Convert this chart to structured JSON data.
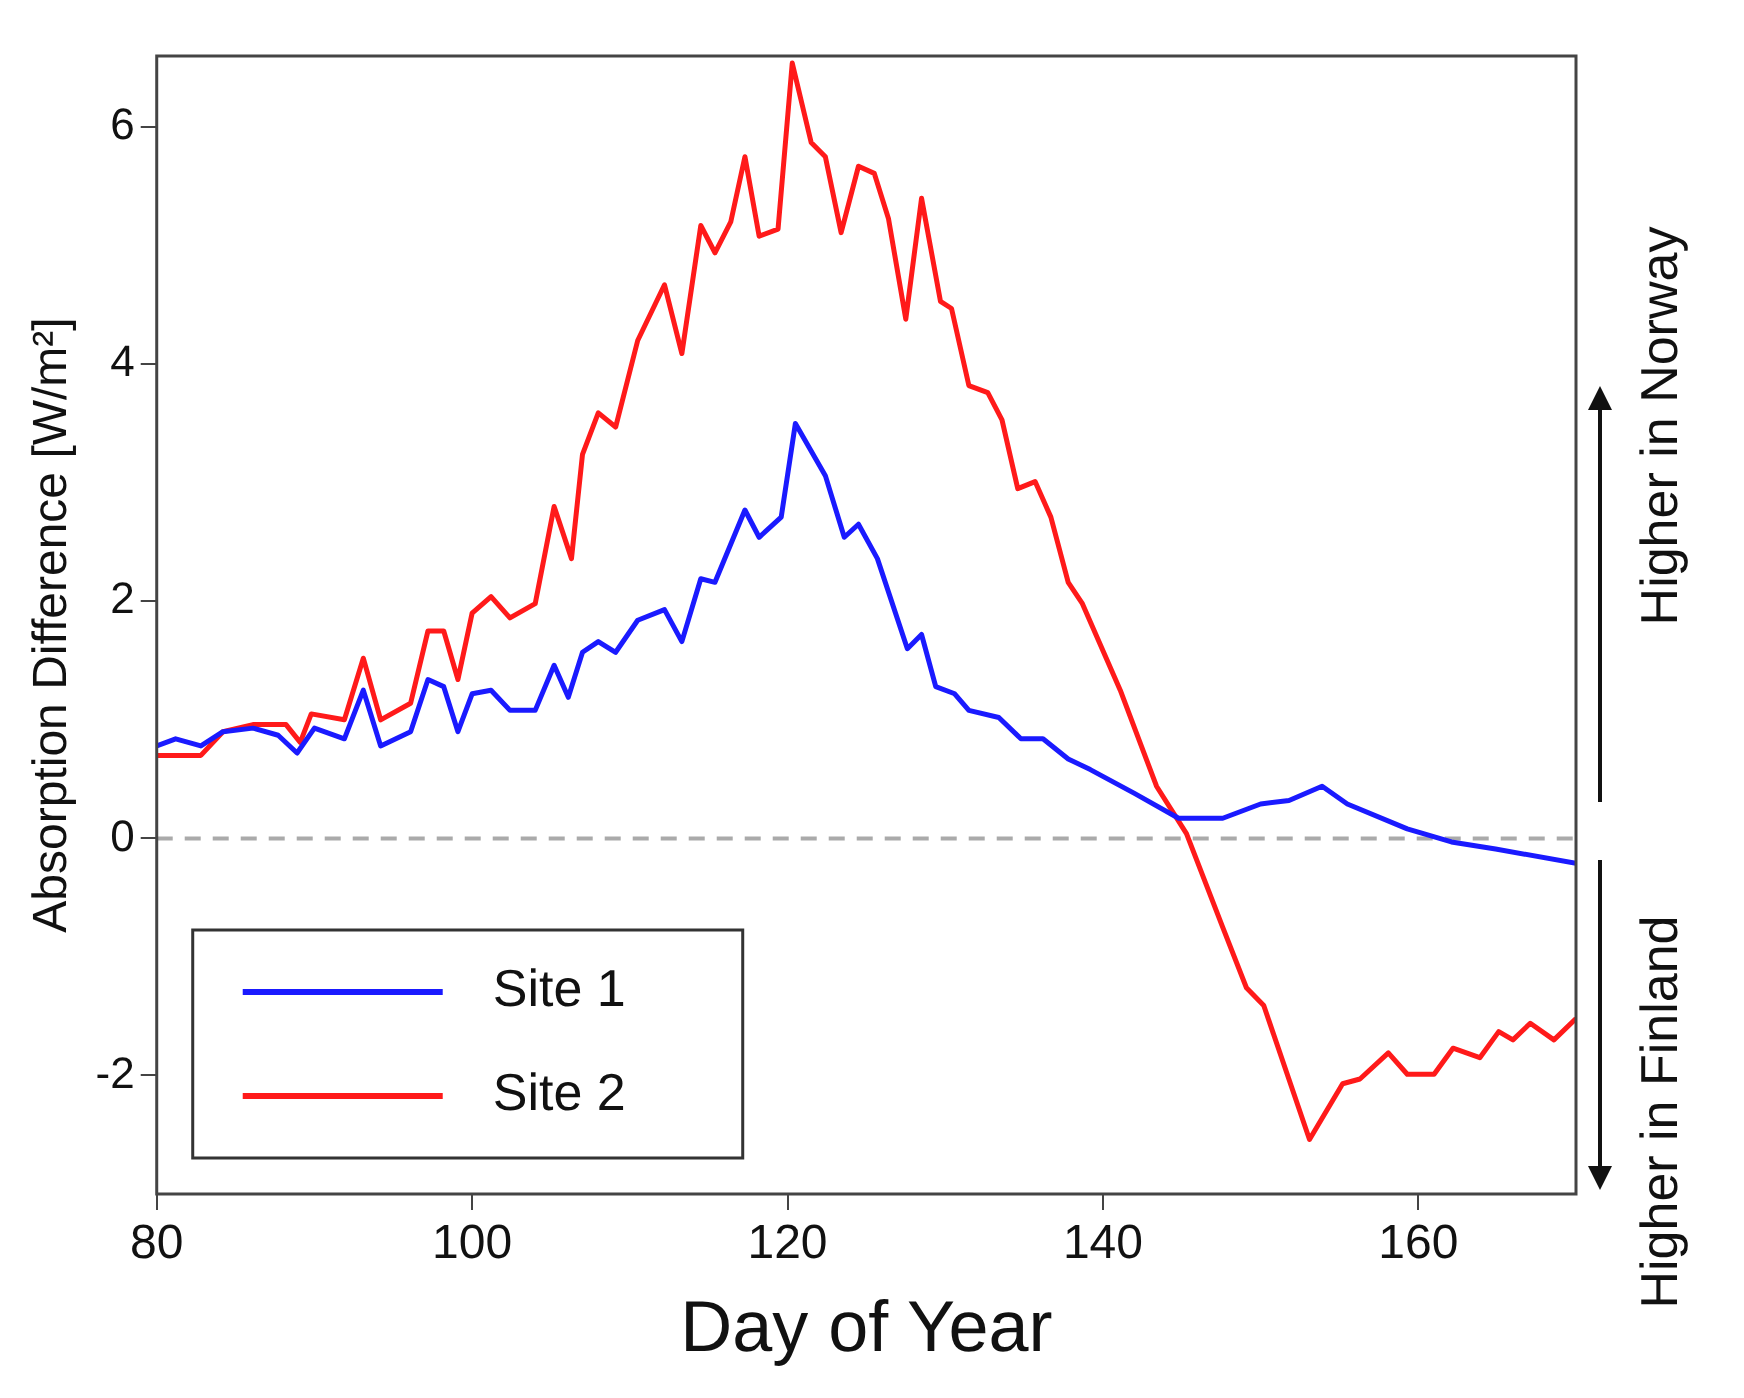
{
  "chart_data": {
    "type": "line",
    "xlabel": "Day of Year",
    "ylabel": "Absorption Difference [W/m²]",
    "xlim": [
      80,
      170
    ],
    "xticks": [
      80,
      100,
      120,
      140,
      160
    ],
    "ylim": [
      -3,
      6.6
    ],
    "yticks": [
      -2,
      0,
      2,
      4,
      6
    ],
    "legend": "bottom left",
    "line_style": "solid",
    "marker": "none",
    "ref_lines": [
      {
        "axis": "y",
        "value": 0,
        "color": "#aaaaaa",
        "line_style": "dashed"
      }
    ],
    "annotations": [
      "Higher in Norway",
      "Higher in Finland"
    ],
    "series": [
      {
        "name": "Site 1",
        "color": "#1a1aff",
        "x": [
          80,
          81.2,
          82.8,
          84.2,
          86.1,
          87.7,
          88.9,
          90,
          91.9,
          93.1,
          94.2,
          96.1,
          97.2,
          98.2,
          99.1,
          100,
          101.2,
          102.4,
          104,
          105.2,
          106.1,
          107,
          108,
          109.1,
          110.5,
          112.2,
          113.3,
          114.5,
          115.4,
          117.3,
          118.2,
          119.6,
          120.5,
          122.4,
          123.6,
          124.5,
          125.7,
          127.6,
          128.5,
          129.4,
          130.6,
          131.5,
          133.4,
          134.8,
          136.2,
          137.8,
          139.2,
          142,
          144.8,
          147.6,
          150,
          151.8,
          153.9,
          155.5,
          159.3,
          162.1,
          164.9,
          170
        ],
        "values": [
          0.78,
          0.84,
          0.78,
          0.9,
          0.93,
          0.87,
          0.72,
          0.93,
          0.84,
          1.25,
          0.78,
          0.9,
          1.34,
          1.28,
          0.9,
          1.22,
          1.25,
          1.08,
          1.08,
          1.46,
          1.19,
          1.57,
          1.66,
          1.57,
          1.84,
          1.93,
          1.66,
          2.19,
          2.16,
          2.77,
          2.54,
          2.71,
          3.5,
          3.06,
          2.54,
          2.65,
          2.36,
          1.6,
          1.72,
          1.28,
          1.22,
          1.08,
          1.02,
          0.84,
          0.84,
          0.67,
          0.58,
          0.38,
          0.17,
          0.17,
          0.29,
          0.32,
          0.44,
          0.29,
          0.08,
          -0.03,
          -0.09,
          -0.21
        ]
      },
      {
        "name": "Site 2",
        "color": "#ff1a1a",
        "x": [
          80,
          82.8,
          84.2,
          86.1,
          88.2,
          89.1,
          89.8,
          91.9,
          93.1,
          94.2,
          96.1,
          97.2,
          98.2,
          99.1,
          100,
          101.2,
          102.4,
          104,
          105.2,
          106.3,
          107,
          108,
          109.1,
          110.5,
          112.2,
          113.3,
          114.5,
          115.4,
          116.4,
          117.3,
          118.2,
          119.4,
          120.3,
          121.5,
          122.4,
          123.4,
          124.5,
          125.5,
          126.4,
          127.5,
          128.5,
          129.7,
          130.4,
          131.5,
          132.7,
          133.6,
          134.6,
          135.7,
          136.7,
          137.8,
          138.7,
          141.1,
          143.4,
          145.3,
          147.6,
          149.1,
          150.2,
          153.1,
          155.2,
          156.3,
          158.1,
          159.3,
          161,
          162.2,
          163.9,
          165.1,
          166,
          167.1,
          168.6,
          170
        ],
        "values": [
          0.7,
          0.7,
          0.9,
          0.96,
          0.96,
          0.81,
          1.05,
          1,
          1.52,
          1,
          1.14,
          1.75,
          1.75,
          1.34,
          1.9,
          2.04,
          1.86,
          1.98,
          2.8,
          2.36,
          3.24,
          3.59,
          3.47,
          4.2,
          4.67,
          4.09,
          5.17,
          4.94,
          5.2,
          5.75,
          5.08,
          5.14,
          6.54,
          5.87,
          5.75,
          5.11,
          5.67,
          5.61,
          5.23,
          4.38,
          5.4,
          4.53,
          4.47,
          3.82,
          3.76,
          3.53,
          2.95,
          3.01,
          2.71,
          2.16,
          1.98,
          1.25,
          0.44,
          0.04,
          -0.75,
          -1.26,
          -1.41,
          -2.54,
          -2.07,
          -2.03,
          -1.81,
          -1.99,
          -1.99,
          -1.77,
          -1.85,
          -1.63,
          -1.7,
          -1.56,
          -1.7,
          -1.52
        ]
      }
    ]
  }
}
